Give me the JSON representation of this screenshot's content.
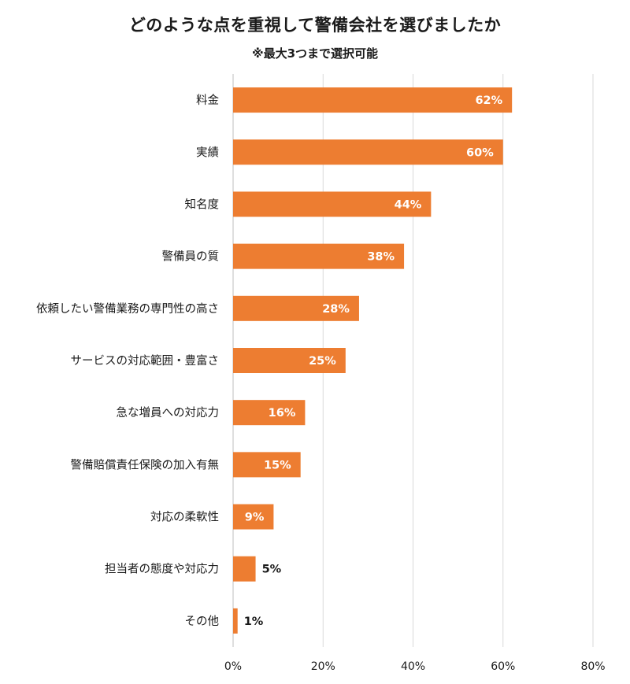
{
  "chart_data": {
    "type": "bar",
    "orientation": "horizontal",
    "title": "どのような点を重視して警備会社を選びましたか",
    "subtitle": "※最大3つまで選択可能",
    "categories": [
      "料金",
      "実績",
      "知名度",
      "警備員の質",
      "依頼したい警備業務の専門性の高さ",
      "サービスの対応範囲・豊富さ",
      "急な増員への対応力",
      "警備賠償責任保険の加入有無",
      "対応の柔軟性",
      "担当者の態度や対応力",
      "その他"
    ],
    "values": [
      62,
      60,
      44,
      38,
      28,
      25,
      16,
      15,
      9,
      5,
      1
    ],
    "value_labels": [
      "62%",
      "60%",
      "44%",
      "38%",
      "28%",
      "25%",
      "16%",
      "15%",
      "9%",
      "5%",
      "1%"
    ],
    "xlim": [
      0,
      80
    ],
    "xticks": [
      "0%",
      "20%",
      "40%",
      "60%",
      "80%"
    ],
    "xlabel": "",
    "ylabel": "",
    "grid": true,
    "bar_color": "#ED7D31",
    "legend": false
  }
}
